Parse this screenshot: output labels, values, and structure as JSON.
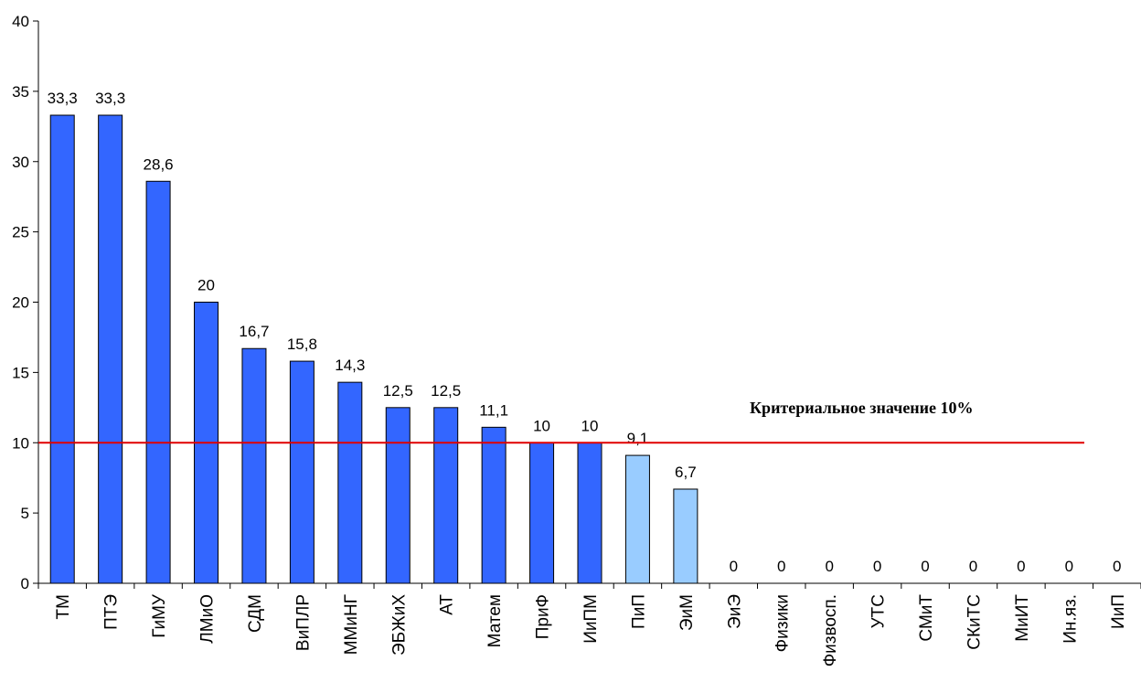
{
  "chart_data": {
    "type": "bar",
    "categories": [
      "ТМ",
      "ПТЭ",
      "ГиМУ",
      "ЛМиО",
      "СДМ",
      "ВиПЛР",
      "ММиНГ",
      "ЭБЖиХ",
      "АТ",
      "Матем",
      "ПриФ",
      "ИиПМ",
      "ПиП",
      "ЭиМ",
      "ЭиЭ",
      "Физики",
      "Физвосп.",
      "УТС",
      "СМиТ",
      "СКиТС",
      "МиИТ",
      "Ин.яз.",
      "ИиП"
    ],
    "values": [
      33.3,
      33.3,
      28.6,
      20,
      16.7,
      15.8,
      14.3,
      12.5,
      12.5,
      11.1,
      10,
      10,
      9.1,
      6.7,
      0,
      0,
      0,
      0,
      0,
      0,
      0,
      0,
      0
    ],
    "data_labels": [
      "33,3",
      "33,3",
      "28,6",
      "20",
      "16,7",
      "15,8",
      "14,3",
      "12,5",
      "12,5",
      "11,1",
      "10",
      "10",
      "9,1",
      "6,7",
      "0",
      "0",
      "0",
      "0",
      "0",
      "0",
      "0",
      "0",
      "0"
    ],
    "bar_colors": [
      "#3366ff",
      "#3366ff",
      "#3366ff",
      "#3366ff",
      "#3366ff",
      "#3366ff",
      "#3366ff",
      "#3366ff",
      "#3366ff",
      "#3366ff",
      "#3366ff",
      "#3366ff",
      "#99ccff",
      "#99ccff",
      "#3366ff",
      "#3366ff",
      "#3366ff",
      "#3366ff",
      "#3366ff",
      "#3366ff",
      "#3366ff",
      "#3366ff",
      "#3366ff"
    ],
    "ylim": [
      0,
      40
    ],
    "yticks": [
      0,
      5,
      10,
      15,
      20,
      25,
      30,
      35,
      40
    ],
    "ytick_labels": [
      "0",
      "5",
      "10",
      "15",
      "20",
      "25",
      "30",
      "35",
      "40"
    ],
    "grid": false,
    "threshold": {
      "value": 10,
      "color": "#e00000",
      "label": "Критериальное значение 10%"
    }
  }
}
